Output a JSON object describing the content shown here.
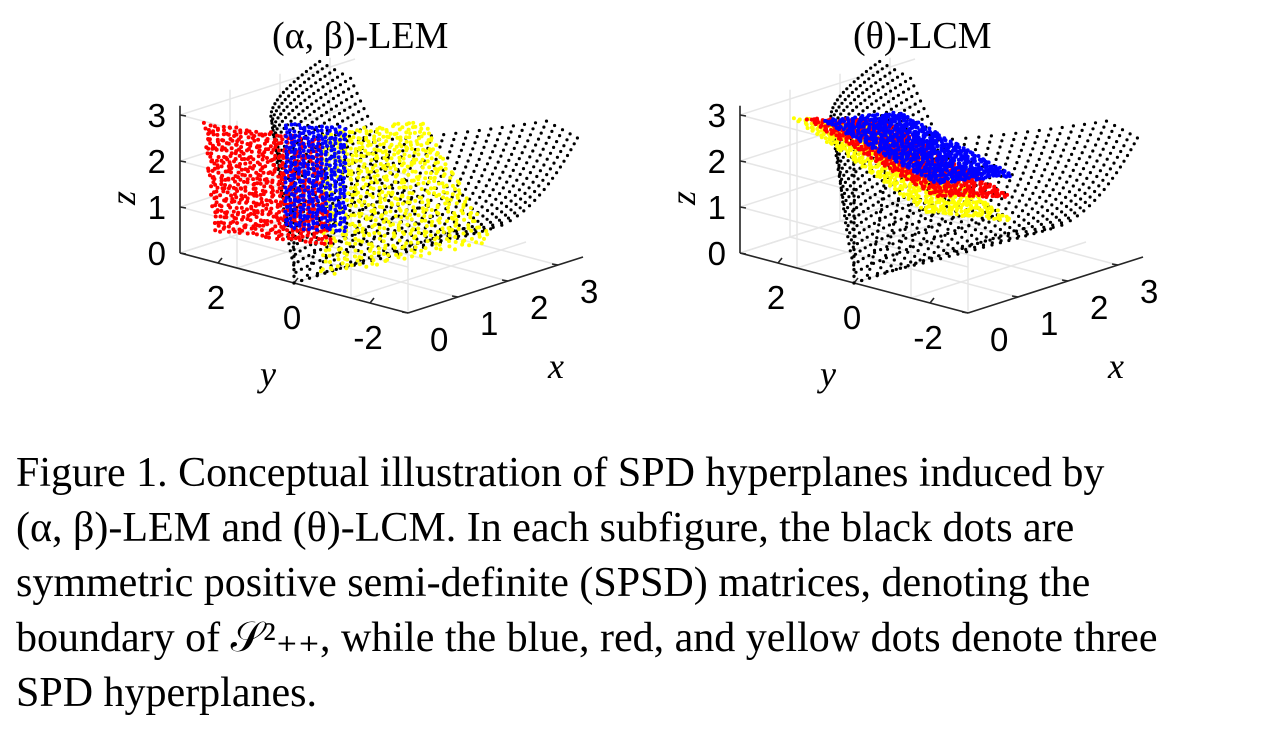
{
  "figure": {
    "panels": [
      {
        "title": "(α, β)-LEM",
        "z_label": "z",
        "y_label": "y",
        "x_label": "x",
        "z_ticks": [
          "0",
          "1",
          "2",
          "3"
        ],
        "y_ticks": [
          "2",
          "0",
          "-2"
        ],
        "x_ticks": [
          "0",
          "1",
          "2",
          "3"
        ]
      },
      {
        "title": "(θ)-LCM",
        "z_label": "z",
        "y_label": "y",
        "x_label": "x",
        "z_ticks": [
          "0",
          "1",
          "2",
          "3"
        ],
        "y_ticks": [
          "2",
          "0",
          "-2"
        ],
        "x_ticks": [
          "0",
          "1",
          "2",
          "3"
        ]
      }
    ],
    "colors": {
      "boundary": "#000000",
      "plane_blue": "#0000ff",
      "plane_red": "#ff0000",
      "plane_yellow": "#ffff00",
      "grid": "#e6e6e6"
    }
  },
  "caption": {
    "lines": [
      "Figure 1. Conceptual illustration of SPD hyperplanes induced by",
      "(α, β)-LEM and (θ)-LCM. In each subfigure, the black dots are",
      "symmetric positive semi-definite (SPSD) matrices, denoting the",
      "boundary of 𝒮²₊₊, while the blue, red, and yellow dots denote three",
      "SPD hyperplanes."
    ]
  }
}
